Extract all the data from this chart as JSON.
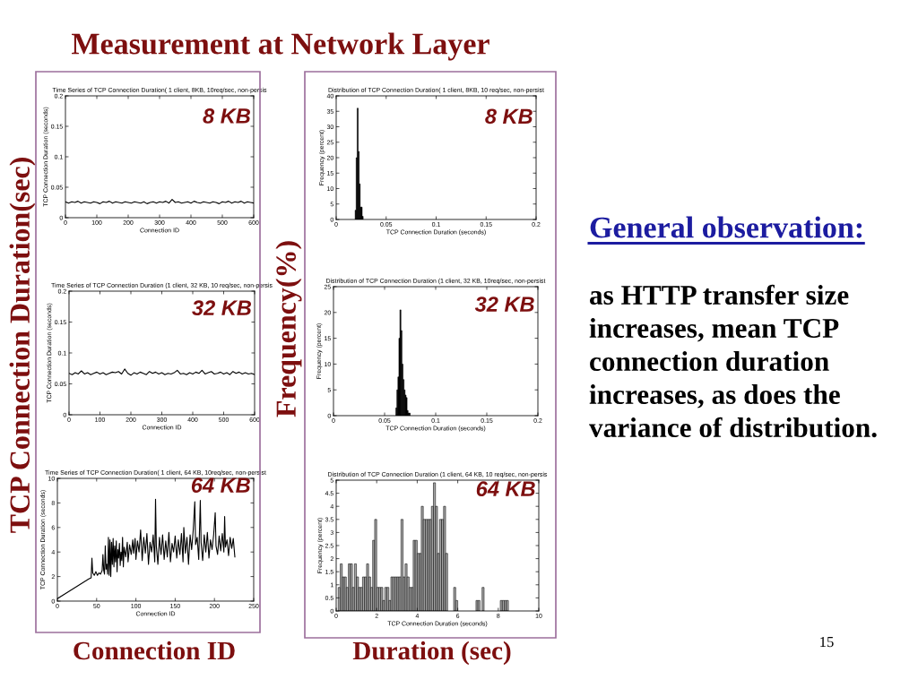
{
  "chart_data": [
    {
      "type": "other",
      "title": "Measurement at Network Layer",
      "annotations": [
        "TCP Connection Duration(sec)",
        "Frequency(%)",
        "Connection ID",
        "Duration (sec)",
        "General observation:",
        "as HTTP transfer size increases, mean TCP connection duration increases, as does the variance of distribution.",
        "15"
      ]
    },
    {
      "type": "line",
      "title": "Time Series of TCP Connection Duration( 1 client, 8KB, 10req/sec, non-persis",
      "xlabel": "Connection ID",
      "ylabel": "TCP Connection Duration (seconds)",
      "annotations": [
        "8 KB"
      ],
      "color": "#000000",
      "x": [
        0,
        10,
        20,
        30,
        40,
        50,
        60,
        70,
        80,
        90,
        100,
        110,
        120,
        130,
        140,
        150,
        160,
        170,
        180,
        190,
        200,
        210,
        220,
        230,
        240,
        250,
        260,
        270,
        280,
        290,
        300,
        310,
        320,
        330,
        340,
        350,
        360,
        370,
        380,
        390,
        400,
        410,
        420,
        430,
        440,
        450,
        460,
        470,
        480,
        490,
        500,
        510,
        520,
        530,
        540,
        550,
        560,
        570,
        580,
        590,
        600
      ],
      "values": [
        0.026,
        0.024,
        0.026,
        0.025,
        0.027,
        0.024,
        0.026,
        0.025,
        0.024,
        0.026,
        0.025,
        0.023,
        0.026,
        0.025,
        0.027,
        0.024,
        0.026,
        0.025,
        0.024,
        0.026,
        0.025,
        0.024,
        0.026,
        0.025,
        0.024,
        0.026,
        0.023,
        0.025,
        0.026,
        0.024,
        0.026,
        0.025,
        0.027,
        0.024,
        0.03,
        0.025,
        0.026,
        0.024,
        0.025,
        0.026,
        0.024,
        0.027,
        0.025,
        0.024,
        0.026,
        0.025,
        0.024,
        0.026,
        0.025,
        0.023,
        0.026,
        0.025,
        0.027,
        0.024,
        0.026,
        0.025,
        0.027,
        0.024,
        0.026,
        0.025,
        0.024
      ],
      "xlim": [
        0,
        600
      ],
      "ylim": [
        0,
        0.2
      ],
      "xticks": [
        0,
        100,
        200,
        300,
        400,
        500,
        600
      ],
      "yticks": [
        0,
        0.05,
        0.1,
        0.15,
        0.2
      ]
    },
    {
      "type": "histogram",
      "title": "Distribution of TCP Connection Duration( 1 client, 8KB, 10 req/sec, non-persist",
      "xlabel": "TCP Connection Duration (seconds)",
      "ylabel": "Frequency (percent)",
      "annotations": [
        "8 KB"
      ],
      "color": "#000000",
      "bins": [
        0.019,
        0.02,
        0.021,
        0.022,
        0.023,
        0.024,
        0.025,
        0.026,
        0.027
      ],
      "values": [
        3,
        20,
        36,
        22,
        11.5,
        4,
        4,
        1
      ],
      "xlim": [
        0,
        0.2
      ],
      "ylim": [
        0,
        40
      ],
      "xticks": [
        0,
        0.05,
        0.1,
        0.15,
        0.2
      ],
      "yticks": [
        0,
        5,
        10,
        15,
        20,
        25,
        30,
        35,
        40
      ]
    },
    {
      "type": "line",
      "title": "Time Series of TCP Connection Duration (1 client, 32 KB, 10 req/sec, non-persis",
      "xlabel": "Connection ID",
      "ylabel": "TCP Connection Duration (seconds)",
      "annotations": [
        "32 KB"
      ],
      "color": "#000000",
      "x": [
        0,
        10,
        20,
        30,
        40,
        50,
        60,
        70,
        80,
        90,
        100,
        110,
        120,
        130,
        140,
        150,
        160,
        170,
        180,
        190,
        200,
        210,
        220,
        230,
        240,
        250,
        260,
        270,
        280,
        290,
        300,
        310,
        320,
        330,
        340,
        350,
        360,
        370,
        380,
        390,
        400,
        410,
        420,
        430,
        440,
        450,
        460,
        470,
        480,
        490,
        500,
        510,
        520,
        530,
        540,
        550,
        560,
        570,
        580,
        590,
        600
      ],
      "values": [
        0.067,
        0.065,
        0.068,
        0.066,
        0.071,
        0.066,
        0.068,
        0.065,
        0.067,
        0.069,
        0.066,
        0.068,
        0.065,
        0.067,
        0.069,
        0.068,
        0.07,
        0.066,
        0.074,
        0.067,
        0.064,
        0.068,
        0.066,
        0.069,
        0.067,
        0.065,
        0.07,
        0.067,
        0.069,
        0.066,
        0.068,
        0.065,
        0.067,
        0.066,
        0.068,
        0.072,
        0.066,
        0.067,
        0.065,
        0.068,
        0.066,
        0.069,
        0.067,
        0.072,
        0.066,
        0.068,
        0.07,
        0.066,
        0.067,
        0.069,
        0.066,
        0.068,
        0.065,
        0.07,
        0.067,
        0.069,
        0.066,
        0.068,
        0.066,
        0.067,
        0.065
      ],
      "xlim": [
        0,
        600
      ],
      "ylim": [
        0,
        0.2
      ],
      "xticks": [
        0,
        100,
        200,
        300,
        400,
        500,
        600
      ],
      "yticks": [
        0,
        0.05,
        0.1,
        0.15,
        0.2
      ]
    },
    {
      "type": "histogram",
      "title": "Distribution of TCP Connection Duration (1 client, 32 KB, 10req/sec, non-persist",
      "xlabel": "TCP Connection Duration (seconds)",
      "ylabel": "Frequency (percent)",
      "annotations": [
        "32 KB"
      ],
      "color": "#000000",
      "bins": [
        0.061,
        0.062,
        0.063,
        0.064,
        0.065,
        0.066,
        0.067,
        0.068,
        0.069,
        0.07,
        0.071,
        0.072,
        0.073,
        0.074,
        0.075
      ],
      "values": [
        1.5,
        5,
        7.5,
        15,
        20.5,
        16.5,
        10,
        7,
        5,
        4,
        3.5,
        1,
        0.5,
        0.5
      ],
      "xlim": [
        0,
        0.2
      ],
      "ylim": [
        0,
        25
      ],
      "xticks": [
        0,
        0.05,
        0.1,
        0.15,
        0.2
      ],
      "yticks": [
        0,
        5,
        10,
        15,
        20,
        25
      ]
    },
    {
      "type": "line",
      "title": "Time Series of TCP Connection Duration( 1 client, 64 KB, 10req/sec, non-persist",
      "xlabel": "Connection ID",
      "ylabel": "TCP Connection Duration (seconds)",
      "annotations": [
        "64 KB"
      ],
      "color": "#000000",
      "x": [
        0,
        10,
        20,
        30,
        40,
        43,
        44,
        45,
        47,
        49,
        51,
        53,
        55,
        57,
        58,
        59,
        60,
        61,
        62,
        63,
        64,
        65,
        66,
        67,
        68,
        69,
        70,
        71,
        72,
        73,
        74,
        75,
        76,
        77,
        78,
        79,
        80,
        81,
        82,
        83,
        84,
        85,
        87,
        89,
        90,
        92,
        94,
        96,
        97,
        99,
        100,
        102,
        104,
        106,
        108,
        110,
        112,
        114,
        116,
        118,
        120,
        122,
        124,
        125,
        126,
        128,
        130,
        132,
        134,
        136,
        138,
        140,
        142,
        144,
        146,
        148,
        150,
        152,
        154,
        156,
        158,
        160,
        161,
        163,
        165,
        167,
        169,
        171,
        173,
        175,
        176,
        178,
        180,
        182,
        183,
        185,
        187,
        189,
        191,
        193,
        195,
        197,
        199,
        201,
        202,
        204,
        206,
        208,
        210,
        212,
        213,
        214,
        216,
        218,
        220,
        222,
        224,
        226
      ],
      "values": [
        0.2,
        0.6,
        1.0,
        1.4,
        1.8,
        1.9,
        3.5,
        2.3,
        2.1,
        2.4,
        2.1,
        2.3,
        2.2,
        2.5,
        3.8,
        2.5,
        2.2,
        4.5,
        2.6,
        3.0,
        2.2,
        5.2,
        2.1,
        5.0,
        2.0,
        4.8,
        3.0,
        5.1,
        2.8,
        4.5,
        3.2,
        4.9,
        2.4,
        4.2,
        3.5,
        4.7,
        2.9,
        4.0,
        3.3,
        5.2,
        2.8,
        4.4,
        3.6,
        4.8,
        3.2,
        4.6,
        3.8,
        5.0,
        3.9,
        5.1,
        3.4,
        4.9,
        4.0,
        5.8,
        3.3,
        5.2,
        3.9,
        5.5,
        3.0,
        4.8,
        4.0,
        5.4,
        3.2,
        8.3,
        4.5,
        3.0,
        5.2,
        3.8,
        5.4,
        3.4,
        4.9,
        3.6,
        5.6,
        3.2,
        4.7,
        4.0,
        5.3,
        3.5,
        5.0,
        3.8,
        5.5,
        3.2,
        6.0,
        3.9,
        5.2,
        3.0,
        5.4,
        4.2,
        5.8,
        8.1,
        4.6,
        5.2,
        3.4,
        8.2,
        4.8,
        3.3,
        5.4,
        4.0,
        5.6,
        3.5,
        5.0,
        4.2,
        5.4,
        7.2,
        4.5,
        3.8,
        5.3,
        4.1,
        5.5,
        4.0,
        6.9,
        4.4,
        5.0,
        3.7,
        5.2,
        4.3,
        5.1,
        3.6
      ],
      "xlim": [
        0,
        250
      ],
      "ylim": [
        0,
        10
      ],
      "xticks": [
        0,
        50,
        100,
        150,
        200,
        250
      ],
      "yticks": [
        0,
        2,
        4,
        6,
        8,
        10
      ]
    },
    {
      "type": "histogram",
      "title": "Distribution of TCP Connection Duration (1 client, 64 KB, 10 req/sec, non-persis",
      "xlabel": "TCP Connection Duration (seconds)",
      "ylabel": "Frequency (percent)",
      "annotations": [
        "64 KB"
      ],
      "color": "#a6a6a6",
      "bins": [
        0.1,
        0.2,
        0.3,
        0.4,
        0.5,
        0.6,
        0.7,
        0.8,
        0.9,
        1.0,
        1.1,
        1.2,
        1.3,
        1.4,
        1.5,
        1.6,
        1.7,
        1.8,
        1.9,
        2.0,
        2.1,
        2.2,
        2.3,
        2.4,
        2.5,
        2.6,
        2.7,
        2.8,
        2.9,
        3.0,
        3.1,
        3.2,
        3.3,
        3.4,
        3.5,
        3.6,
        3.7,
        3.8,
        3.9,
        4.0,
        4.1,
        4.2,
        4.3,
        4.4,
        4.5,
        4.6,
        4.7,
        4.8,
        4.9,
        5.0,
        5.1,
        5.2,
        5.3,
        5.4,
        5.5,
        5.6,
        5.7,
        5.8,
        5.9,
        6.0,
        6.1,
        6.2,
        6.3,
        6.4,
        6.5,
        6.6,
        6.7,
        6.8,
        6.9,
        7.0,
        7.1,
        7.2,
        7.3,
        7.4,
        7.5,
        7.6,
        7.7,
        7.8,
        7.9,
        8.0,
        8.1,
        8.2,
        8.3,
        8.4,
        8.5
      ],
      "values": [
        0.9,
        1.8,
        1.3,
        1.3,
        0.9,
        1.8,
        1.8,
        0.9,
        1.8,
        1.3,
        0.9,
        0.9,
        1.3,
        1.3,
        1.8,
        1.3,
        0.9,
        2.7,
        3.5,
        0.9,
        0.9,
        0.9,
        0.4,
        0.9,
        0.9,
        0.4,
        1.3,
        1.3,
        1.3,
        1.3,
        1.3,
        3.5,
        1.3,
        1.8,
        1.3,
        0.9,
        0.9,
        2.7,
        2.7,
        2.2,
        2.2,
        4.0,
        3.5,
        3.5,
        3.5,
        3.5,
        4.0,
        4.9,
        4.0,
        2.2,
        3.5,
        3.5,
        4.0,
        2.2,
        0,
        0,
        0,
        0.9,
        0.4,
        0,
        0,
        0,
        0,
        0,
        0,
        0,
        0,
        0,
        0.4,
        0.4,
        0,
        0.9,
        0,
        0,
        0,
        0,
        0,
        0,
        0,
        0,
        0.4,
        0.4,
        0.4,
        0.4
      ],
      "xlim": [
        0,
        10
      ],
      "ylim": [
        0,
        5
      ],
      "xticks": [
        0,
        2,
        4,
        6,
        8,
        10
      ],
      "yticks": [
        0,
        0.5,
        1,
        1.5,
        2,
        2.5,
        3,
        3.5,
        4,
        4.5,
        5
      ]
    }
  ]
}
